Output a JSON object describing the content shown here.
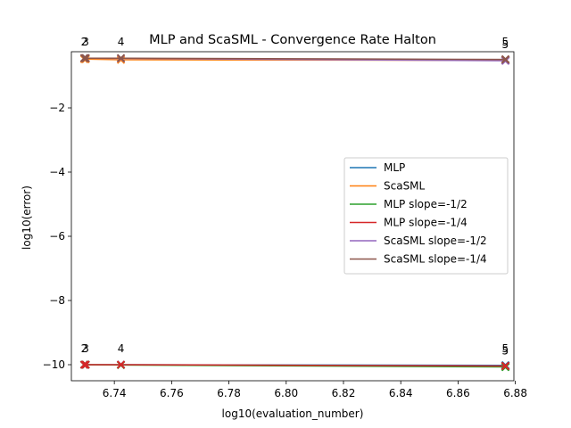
{
  "chart_data": {
    "type": "line",
    "title": "MLP and ScaSML - Convergence Rate Halton",
    "xlabel": "log10(evaluation_number)",
    "ylabel": "log10(error)",
    "xlim": [
      6.725,
      6.8795
    ],
    "ylim": [
      -10.5,
      -0.25
    ],
    "xticks": [
      6.74,
      6.76,
      6.78,
      6.8,
      6.82,
      6.84,
      6.86,
      6.88
    ],
    "yticks": [
      -10,
      -8,
      -6,
      -4,
      -2
    ],
    "legend_position": "center-right",
    "series": [
      {
        "name": "MLP",
        "color": "#1f77b4",
        "x": [
          6.7295,
          6.73,
          6.7423,
          6.8765,
          6.8766
        ],
        "y": [
          -10.0,
          -10.0,
          -10.0,
          -10.02,
          -10.02
        ]
      },
      {
        "name": "ScaSML",
        "color": "#ff7f0e",
        "x": [
          6.7295,
          6.73,
          6.7423,
          6.8765,
          6.8766
        ],
        "y": [
          -0.48,
          -0.48,
          -0.5,
          -0.52,
          -0.52
        ]
      },
      {
        "name": "MLP slope=-1/2",
        "color": "#2ca02c",
        "x": [
          6.7295,
          6.73,
          6.7423,
          6.8765,
          6.8766
        ],
        "y": [
          -10.0,
          -10.0,
          -10.01,
          -10.07,
          -10.07
        ]
      },
      {
        "name": "MLP slope=-1/4",
        "color": "#d62728",
        "x": [
          6.7295,
          6.73,
          6.7423,
          6.8765,
          6.8766
        ],
        "y": [
          -10.0,
          -10.0,
          -10.0,
          -10.04,
          -10.04
        ]
      },
      {
        "name": "ScaSML slope=-1/2",
        "color": "#9467bd",
        "x": [
          6.7295,
          6.73,
          6.7423,
          6.8765,
          6.8766
        ],
        "y": [
          -0.45,
          -0.45,
          -0.46,
          -0.53,
          -0.53
        ]
      },
      {
        "name": "ScaSML slope=-1/4",
        "color": "#8c564b",
        "x": [
          6.7295,
          6.73,
          6.7423,
          6.8765,
          6.8766
        ],
        "y": [
          -0.45,
          -0.45,
          -0.45,
          -0.49,
          -0.49
        ]
      }
    ],
    "point_labels": [
      {
        "text": "2",
        "x": 6.7295,
        "y": -0.45
      },
      {
        "text": "3",
        "x": 6.73,
        "y": -0.45
      },
      {
        "text": "4",
        "x": 6.7423,
        "y": -0.45
      },
      {
        "text": "5",
        "x": 6.8765,
        "y": -0.45
      },
      {
        "text": "5",
        "x": 6.8765,
        "y": -0.53
      },
      {
        "text": "2",
        "x": 6.7295,
        "y": -10.0
      },
      {
        "text": "3",
        "x": 6.73,
        "y": -10.0
      },
      {
        "text": "4",
        "x": 6.7423,
        "y": -10.0
      },
      {
        "text": "5",
        "x": 6.8765,
        "y": -10.0
      },
      {
        "text": "5",
        "x": 6.8765,
        "y": -10.07
      }
    ]
  }
}
